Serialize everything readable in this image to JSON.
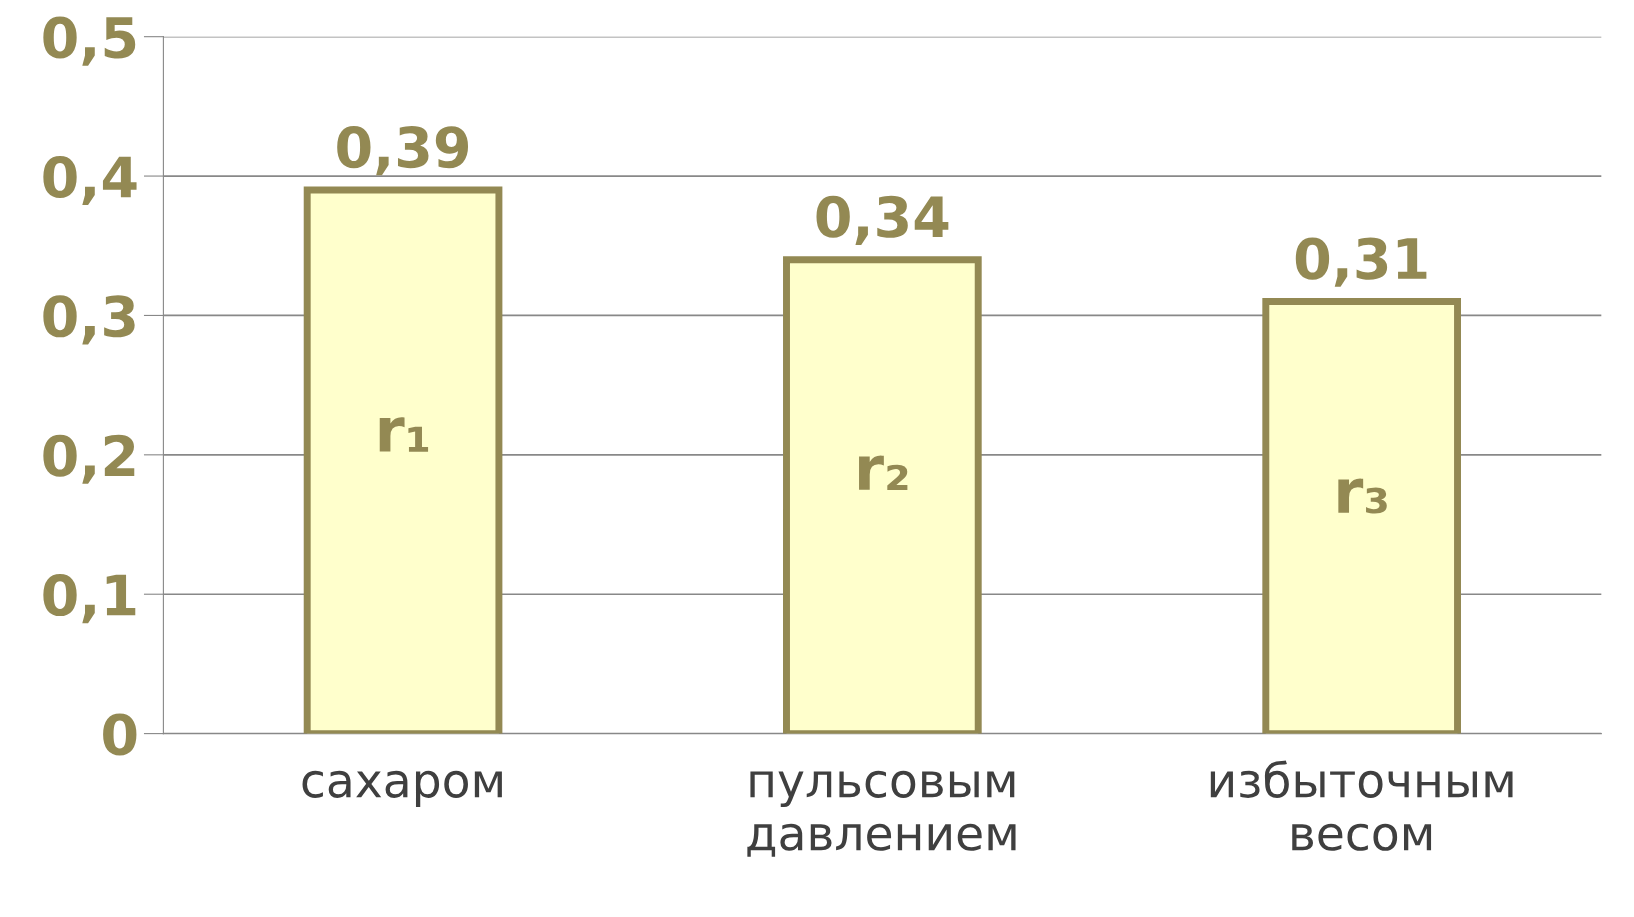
{
  "chart_data": {
    "type": "bar",
    "categories": [
      "сахаром",
      "пульсовым давлением",
      "избыточным весом"
    ],
    "values": [
      0.39,
      0.34,
      0.31
    ],
    "value_labels": [
      "0,39",
      "0,34",
      "0,31"
    ],
    "color": "#ffffcc",
    "ylim": [
      0,
      0.5
    ],
    "yticks": [
      {
        "value": 0,
        "label": "0"
      },
      {
        "value": 0.1,
        "label": "0,1"
      },
      {
        "value": 0.2,
        "label": "0,2"
      },
      {
        "value": 0.3,
        "label": "0,3"
      },
      {
        "value": 0.4,
        "label": "0,4"
      },
      {
        "value": 0.5,
        "label": "0,5"
      }
    ],
    "grid": "y",
    "annotations": [
      "r₁",
      "r₂",
      "r₃"
    ]
  }
}
